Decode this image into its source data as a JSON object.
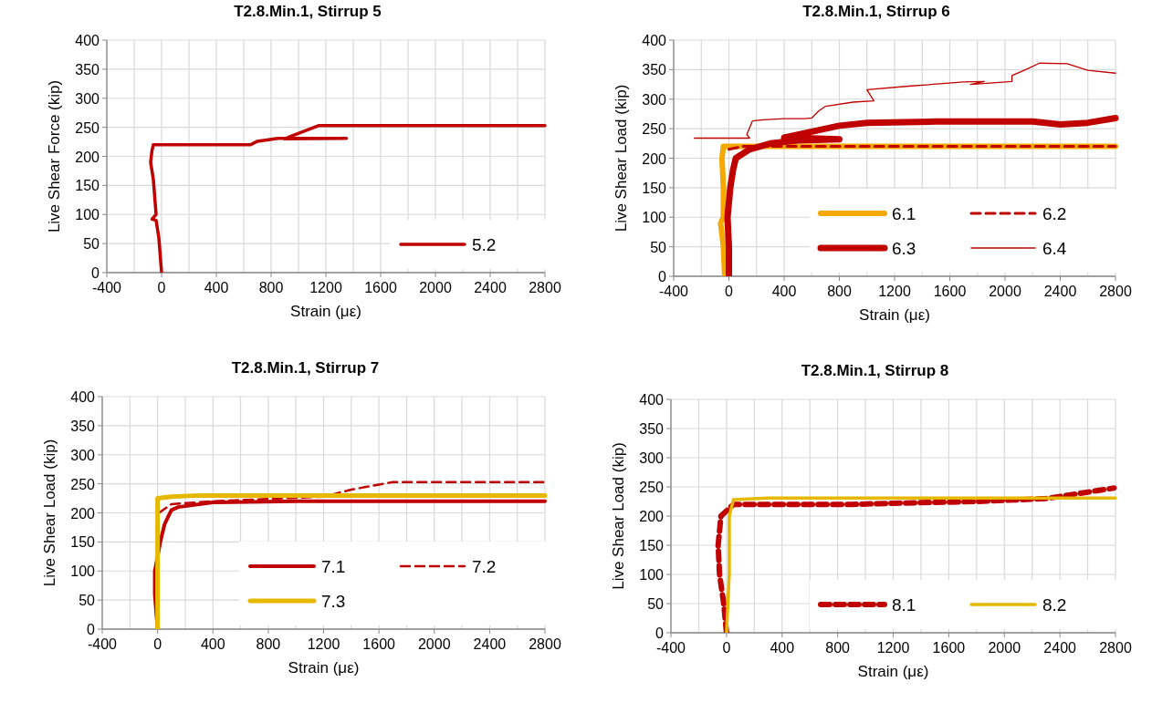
{
  "chart_data": [
    {
      "type": "line",
      "title": "T2.8.Min.1, Stirrup 5",
      "xlabel": "Strain (με)",
      "ylabel": "Live Shear Force (kip)",
      "xlim": [
        -400,
        2800
      ],
      "ylim": [
        0,
        400
      ],
      "xticks": [
        -400,
        {
          "value": -200,
          "label": null
        },
        0,
        {
          "value": 200,
          "label": null
        },
        400,
        {
          "value": 600,
          "label": null
        },
        800,
        {
          "value": 1000,
          "label": null
        },
        1200,
        {
          "value": 1400,
          "label": null
        },
        1600,
        {
          "value": 1800,
          "label": null
        },
        2000,
        {
          "value": 2200,
          "label": null
        },
        2400,
        {
          "value": 2600,
          "label": null
        },
        2800
      ],
      "yticks": [
        0,
        50,
        100,
        150,
        200,
        250,
        300,
        350,
        400
      ],
      "grid": true,
      "legend": "bottom right",
      "series": [
        {
          "name": "5.2",
          "color": "#c00000",
          "line_style": "solid",
          "x": [
            0,
            -10,
            -20,
            -40,
            -70,
            -40,
            -50,
            -60,
            -80,
            -70,
            -60,
            650,
            700,
            850,
            1350,
            900,
            950,
            1150,
            2800
          ],
          "values": [
            0,
            30,
            60,
            90,
            92,
            100,
            130,
            160,
            190,
            210,
            220,
            220,
            226,
            231,
            231,
            230,
            235,
            253,
            253
          ]
        }
      ]
    },
    {
      "type": "line",
      "title": "T2.8.Min.1, Stirrup 6",
      "xlabel": "Strain (με)",
      "ylabel": "Live Shear Load (kip)",
      "xlim": [
        -400,
        2800
      ],
      "ylim": [
        0,
        400
      ],
      "xticks": [
        -400,
        {
          "value": -200,
          "label": null
        },
        0,
        {
          "value": 200,
          "label": null
        },
        400,
        {
          "value": 600,
          "label": null
        },
        800,
        {
          "value": 1000,
          "label": null
        },
        1200,
        {
          "value": 1400,
          "label": null
        },
        1600,
        {
          "value": 1800,
          "label": null
        },
        2000,
        {
          "value": 2200,
          "label": null
        },
        2400,
        {
          "value": 2600,
          "label": null
        },
        2800
      ],
      "yticks": [
        0,
        50,
        100,
        150,
        200,
        250,
        300,
        350,
        400
      ],
      "grid": true,
      "legend": "bottom right",
      "series": [
        {
          "name": "6.1",
          "color": "#f5a800",
          "line_style": "solid",
          "x": [
            -30,
            -40,
            -60,
            -40,
            -40,
            -50,
            -40,
            2800
          ],
          "values": [
            0,
            50,
            90,
            100,
            150,
            200,
            220,
            220
          ]
        },
        {
          "name": "6.2",
          "color": "#c00000",
          "line_style": "dashed",
          "x": [
            0,
            100,
            2800
          ],
          "values": [
            215,
            220,
            220
          ]
        },
        {
          "name": "6.3",
          "color": "#c00000",
          "line_style": "solid",
          "x": [
            0,
            0,
            -10,
            10,
            30,
            50,
            150,
            300,
            500,
            800,
            400,
            600,
            800,
            1000,
            1500,
            2200,
            2400,
            2600,
            2800
          ],
          "values": [
            0,
            50,
            100,
            150,
            180,
            200,
            215,
            225,
            230,
            232,
            235,
            245,
            255,
            260,
            262,
            262,
            257,
            260,
            268
          ]
        },
        {
          "name": "6.4",
          "color": "#c00000",
          "line_style": "solid",
          "x": [
            -250,
            150,
            130,
            170,
            250,
            400,
            550,
            600,
            650,
            700,
            900,
            1050,
            1000,
            1300,
            1700,
            1850,
            1750,
            2050,
            2050,
            2150,
            2250,
            2450,
            2600,
            2800
          ],
          "values": [
            234,
            234,
            240,
            263,
            265,
            267,
            267,
            268,
            280,
            288,
            295,
            297,
            316,
            322,
            329,
            330,
            325,
            330,
            340,
            350,
            361,
            360,
            349,
            344
          ]
        }
      ]
    },
    {
      "type": "line",
      "title": "T2.8.Min.1, Stirrup 7",
      "xlabel": "Strain (με)",
      "ylabel": "Live Shear Load (kip)",
      "xlim": [
        -400,
        2800
      ],
      "ylim": [
        0,
        400
      ],
      "xticks": [
        -400,
        {
          "value": -200,
          "label": null
        },
        0,
        {
          "value": 200,
          "label": null
        },
        400,
        {
          "value": 600,
          "label": null
        },
        800,
        {
          "value": 1000,
          "label": null
        },
        1200,
        {
          "value": 1400,
          "label": null
        },
        1600,
        {
          "value": 1800,
          "label": null
        },
        2000,
        {
          "value": 2200,
          "label": null
        },
        2400,
        {
          "value": 2600,
          "label": null
        },
        2800
      ],
      "yticks": [
        0,
        50,
        100,
        150,
        200,
        250,
        300,
        350,
        400
      ],
      "grid": true,
      "legend": "bottom right",
      "series": [
        {
          "name": "7.1",
          "color": "#c00000",
          "line_style": "solid",
          "x": [
            0,
            -20,
            -20,
            20,
            50,
            80,
            100,
            150,
            400,
            1000,
            2800
          ],
          "values": [
            0,
            60,
            100,
            150,
            180,
            195,
            205,
            210,
            218,
            220,
            220
          ]
        },
        {
          "name": "7.2",
          "color": "#c00000",
          "line_style": "dashed",
          "x": [
            10,
            100,
            400,
            1200,
            1400,
            1700,
            2800
          ],
          "values": [
            200,
            215,
            220,
            228,
            240,
            253,
            253
          ]
        },
        {
          "name": "7.3",
          "color": "#e6b800",
          "line_style": "solid",
          "x": [
            0,
            0,
            0,
            100,
            300,
            2800
          ],
          "values": [
            0,
            100,
            225,
            228,
            230,
            230
          ]
        }
      ]
    },
    {
      "type": "line",
      "title": "T2.8.Min.1, Stirrup 8",
      "xlabel": "Strain (με)",
      "ylabel": "Live Shear Load (kip)",
      "xlim": [
        -400,
        2800
      ],
      "ylim": [
        0,
        400
      ],
      "xticks": [
        -400,
        {
          "value": -200,
          "label": null
        },
        0,
        {
          "value": 200,
          "label": null
        },
        400,
        {
          "value": 600,
          "label": null
        },
        800,
        {
          "value": 1000,
          "label": null
        },
        1200,
        {
          "value": 1400,
          "label": null
        },
        1600,
        {
          "value": 1800,
          "label": null
        },
        2000,
        {
          "value": 2200,
          "label": null
        },
        2400,
        {
          "value": 2600,
          "label": null
        },
        2800
      ],
      "yticks": [
        0,
        50,
        100,
        150,
        200,
        250,
        300,
        350,
        400
      ],
      "grid": true,
      "legend": "bottom right",
      "series": [
        {
          "name": "8.1",
          "color": "#c00000",
          "line_style": "dashed",
          "x": [
            0,
            -20,
            -50,
            -60,
            -40,
            50,
            900,
            1200,
            1800,
            2300,
            2790
          ],
          "values": [
            0,
            50,
            100,
            150,
            200,
            220,
            220,
            222,
            225,
            230,
            248
          ]
        },
        {
          "name": "8.2",
          "color": "#e6b800",
          "line_style": "solid",
          "x": [
            0,
            20,
            20,
            50,
            300,
            2800
          ],
          "values": [
            0,
            100,
            200,
            228,
            231,
            231
          ]
        }
      ]
    }
  ]
}
